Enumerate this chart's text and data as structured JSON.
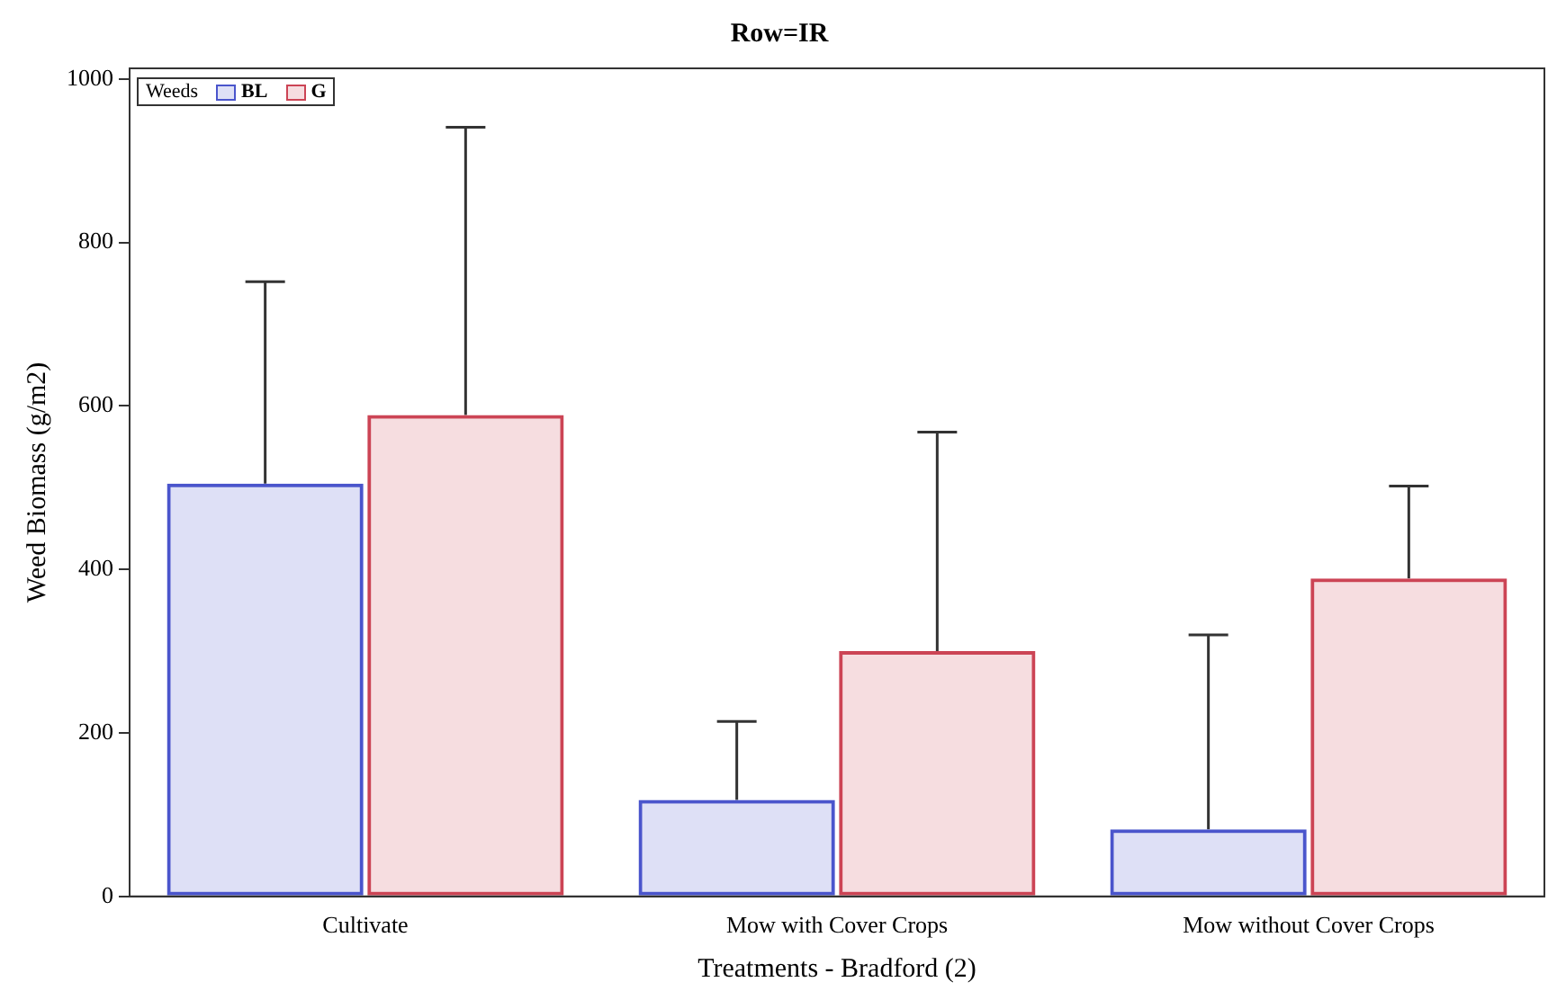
{
  "chart_data": {
    "type": "bar",
    "title": "Row=IR",
    "xlabel": "Treatments - Bradford (2)",
    "ylabel": "Weed Biomass (g/m2)",
    "legend_title": "Weeds",
    "legend": "top left",
    "grid": false,
    "categories": [
      "Cultivate",
      "Mow with Cover Crops",
      "Mow without Cover Crops"
    ],
    "series": [
      {
        "name": "BL",
        "color": "#4a55cc",
        "values": [
          505,
          118,
          82
        ],
        "errors": [
          [
            505,
            752
          ],
          [
            118,
            214
          ],
          [
            82,
            320
          ]
        ]
      },
      {
        "name": "G",
        "color": "#cc4455",
        "values": [
          589,
          300,
          389
        ],
        "errors": [
          [
            589,
            941
          ],
          [
            300,
            568
          ],
          [
            389,
            502
          ]
        ]
      }
    ],
    "ylim": [
      0,
      1013
    ],
    "yticks": [
      0,
      200,
      400,
      600,
      800,
      1000
    ]
  }
}
